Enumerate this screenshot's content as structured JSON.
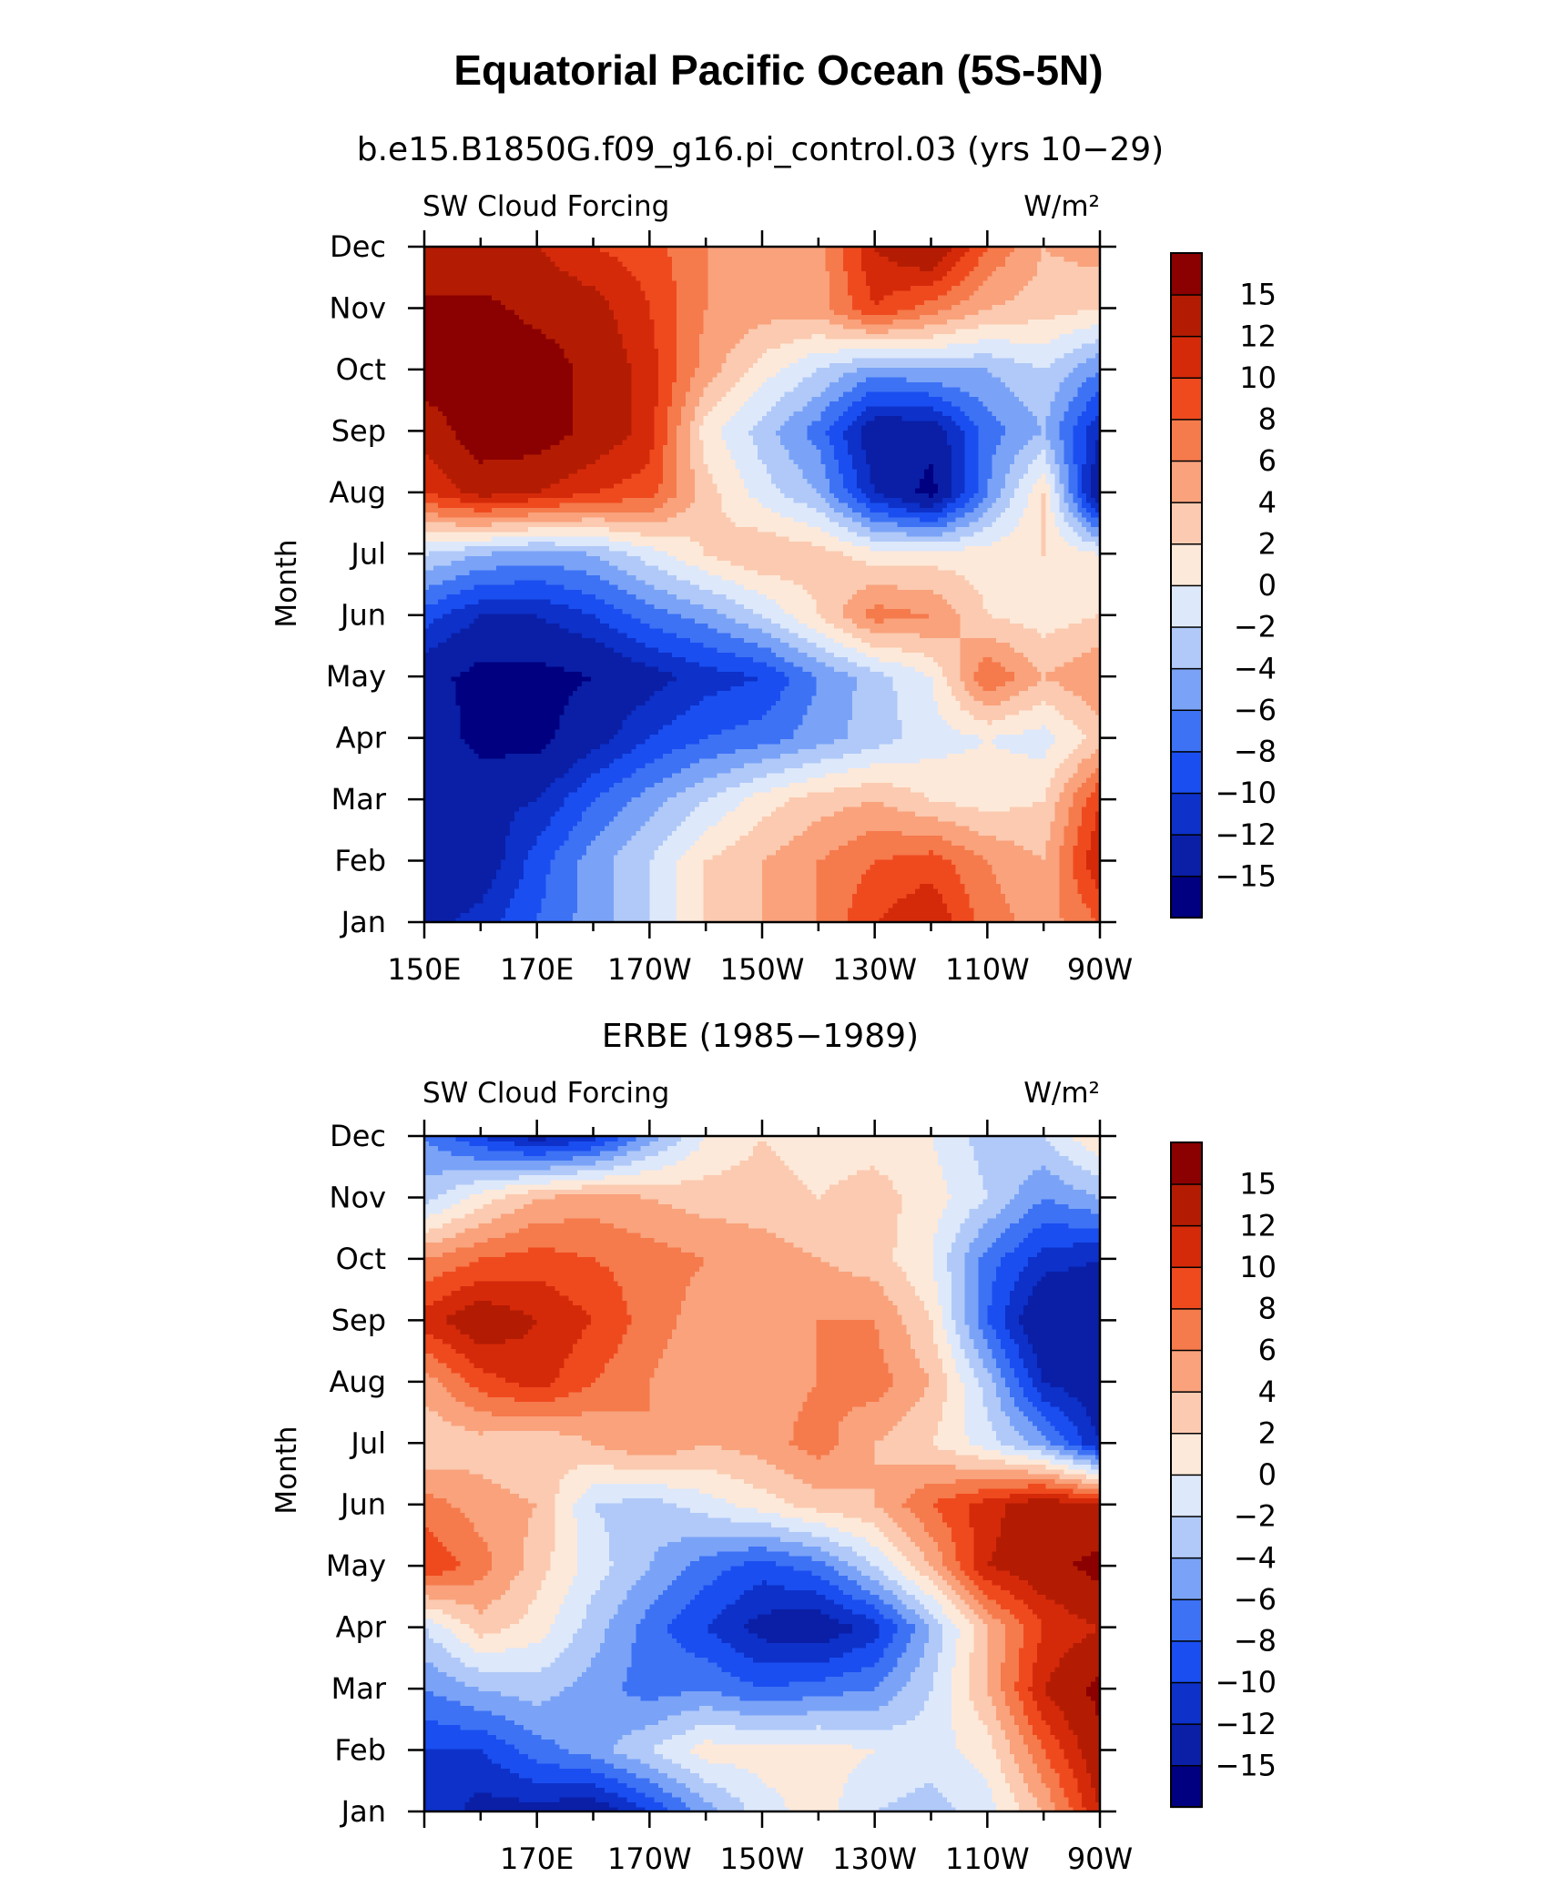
{
  "figure": {
    "title": "Equatorial Pacific Ocean (5S-5N)"
  },
  "colorbar": {
    "levels": [
      -15,
      -12,
      -10,
      -8,
      -6,
      -4,
      -2,
      0,
      2,
      4,
      6,
      8,
      10,
      12,
      15
    ],
    "labels": [
      "15",
      "12",
      "10",
      "8",
      "6",
      "4",
      "2",
      "0",
      "−2",
      "−4",
      "−6",
      "−8",
      "−10",
      "−12",
      "−15"
    ],
    "colors": [
      "#000080",
      "#0a1fa6",
      "#0d31c9",
      "#1a4ef0",
      "#3d72f5",
      "#7aa3f7",
      "#b0c9f8",
      "#dde8fb",
      "#fde9d9",
      "#fbcab0",
      "#f9a27c",
      "#f57a4c",
      "#ef4a1e",
      "#d52a0a",
      "#b31c03",
      "#8b0000"
    ]
  },
  "chart_data": [
    {
      "type": "heatmap",
      "title": "b.e15.B1850G.f09_g16.pi_control.03 (yrs 10−29)",
      "left_label": "SW Cloud Forcing",
      "units": "W/m²",
      "ylabel": "Month",
      "y_categories": [
        "Jan",
        "Feb",
        "Mar",
        "Apr",
        "May",
        "Jun",
        "Jul",
        "Aug",
        "Sep",
        "Oct",
        "Nov",
        "Dec"
      ],
      "x_tick_labels": [
        "150E",
        "170E",
        "170W",
        "150W",
        "130W",
        "110W",
        "90W"
      ],
      "x_longitudes": [
        150,
        160,
        170,
        180,
        190,
        200,
        210,
        220,
        230,
        240,
        250,
        260,
        270
      ],
      "legend": "colorbar right",
      "z": [
        [
          -13,
          -11,
          -8,
          -5,
          -2,
          2,
          4,
          6,
          10,
          12,
          7,
          5,
          8
        ],
        [
          -15,
          -14,
          -9,
          -5,
          -2,
          2,
          4,
          6,
          8,
          9,
          6,
          4,
          12
        ],
        [
          -12,
          -13,
          -12,
          -8,
          -5,
          -2,
          1,
          3,
          4,
          2,
          1,
          2,
          10
        ],
        [
          -13,
          -16,
          -16,
          -13,
          -10,
          -8,
          -7,
          -5,
          -3,
          -1,
          0,
          -1,
          3
        ],
        [
          -14,
          -16,
          -16,
          -15,
          -13,
          -11,
          -10,
          -6,
          -3,
          0,
          8,
          4,
          6
        ],
        [
          -9,
          -12,
          -12,
          -10,
          -7,
          -5,
          -2,
          2,
          7,
          6,
          2,
          1,
          2
        ],
        [
          -2,
          -4,
          -5,
          -4,
          -1,
          2,
          4,
          3,
          1,
          1,
          1,
          2,
          0
        ],
        [
          10,
          13,
          12,
          10,
          9,
          3,
          -1,
          -4,
          -12,
          -16,
          -6,
          2,
          -15
        ],
        [
          13,
          17,
          17,
          14,
          11,
          1,
          -3,
          -7,
          -14,
          -14,
          -7,
          -4,
          -12
        ],
        [
          17,
          17,
          17,
          14,
          11,
          5,
          1,
          -2,
          -5,
          -4,
          -4,
          -2,
          -6
        ],
        [
          16,
          16,
          14,
          13,
          10,
          6,
          5,
          5,
          10,
          7,
          4,
          3,
          2
        ],
        [
          12,
          12,
          12,
          10,
          9,
          6,
          4,
          5,
          12,
          15,
          8,
          4,
          5
        ]
      ]
    },
    {
      "type": "heatmap",
      "title": "ERBE (1985−1989)",
      "left_label": "SW Cloud Forcing",
      "units": "W/m²",
      "ylabel": "Month",
      "y_categories": [
        "Jan",
        "Feb",
        "Mar",
        "Apr",
        "May",
        "Jun",
        "Jul",
        "Aug",
        "Sep",
        "Oct",
        "Nov",
        "Dec"
      ],
      "x_tick_labels": [
        "170E",
        "170W",
        "150W",
        "130W",
        "110W",
        "90W"
      ],
      "x_longitudes": [
        150,
        160,
        170,
        180,
        190,
        200,
        210,
        220,
        230,
        240,
        250,
        260,
        270
      ],
      "legend": "colorbar right",
      "z": [
        [
          -10,
          -13,
          -13,
          -14,
          -10,
          -5,
          -1,
          1,
          -2,
          -3,
          -1,
          4,
          12
        ],
        [
          -10,
          -10,
          -7,
          -5,
          -2,
          1,
          1,
          1,
          0,
          -1,
          1,
          8,
          14
        ],
        [
          -6,
          -4,
          -3,
          -5,
          -7,
          -6,
          -8,
          -7,
          -6,
          -2,
          4,
          12,
          16
        ],
        [
          -2,
          3,
          1,
          -3,
          -7,
          -10,
          -13,
          -14,
          -11,
          -4,
          4,
          10,
          12
        ],
        [
          10,
          7,
          3,
          -1,
          -4,
          -7,
          -9,
          -7,
          -2,
          4,
          12,
          14,
          16
        ],
        [
          7,
          5,
          4,
          -2,
          -3,
          -1,
          1,
          3,
          4,
          8,
          11,
          14,
          12
        ],
        [
          2,
          3,
          2,
          4,
          6,
          4,
          5,
          7,
          4,
          2,
          -1,
          -5,
          -12
        ],
        [
          5,
          9,
          11,
          8,
          6,
          4,
          5,
          6,
          7,
          4,
          -3,
          -12,
          -14
        ],
        [
          11,
          14,
          12,
          10,
          7,
          5,
          5,
          6,
          6,
          2,
          -8,
          -15,
          -15
        ],
        [
          6,
          8,
          9,
          8,
          7,
          6,
          5,
          4,
          3,
          0,
          -7,
          -11,
          -12
        ],
        [
          -3,
          1,
          4,
          5,
          4,
          3,
          3,
          2,
          3,
          1,
          -2,
          -6,
          -4
        ],
        [
          -6,
          -10,
          -13,
          -11,
          -5,
          0,
          2,
          1,
          1,
          0,
          -3,
          -2,
          2
        ]
      ]
    }
  ]
}
